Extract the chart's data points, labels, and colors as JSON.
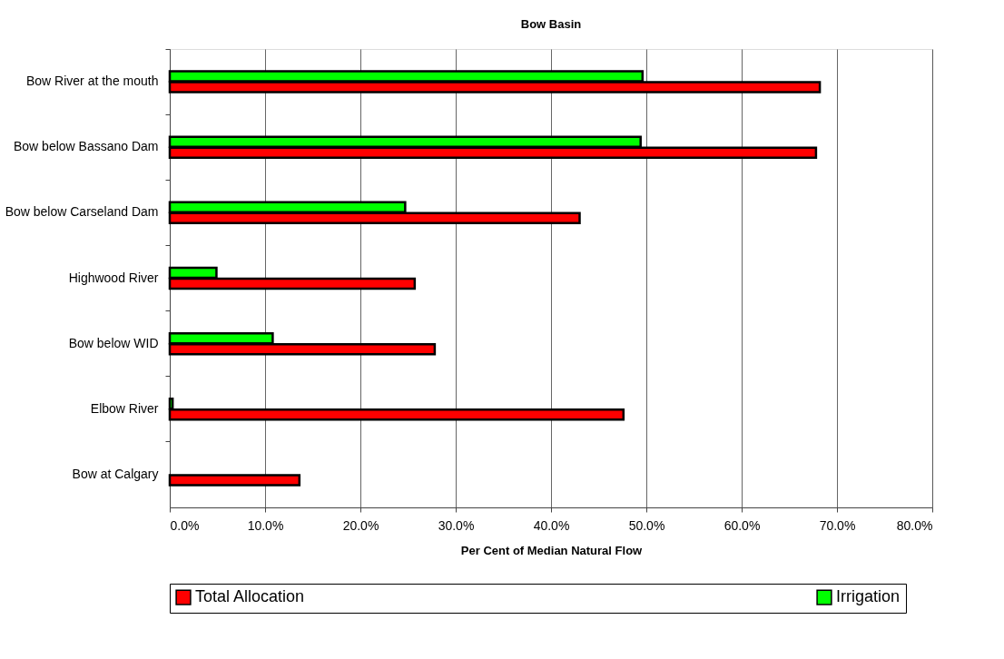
{
  "chart_data": {
    "type": "bar",
    "orientation": "horizontal",
    "title": "Bow Basin",
    "xlabel": "Per Cent of Median Natural Flow",
    "categories": [
      "Bow River at the mouth",
      "Bow below Bassano Dam",
      "Bow below Carseland Dam",
      "Highwood River",
      "Bow below WID",
      "Elbow River",
      "Bow at Calgary"
    ],
    "series": [
      {
        "name": "Irrigation",
        "color": "#00ff00",
        "values": [
          49.6,
          49.4,
          24.7,
          4.9,
          10.8,
          0.3,
          null
        ]
      },
      {
        "name": "Total Allocation",
        "color": "#ff0000",
        "values": [
          68.2,
          67.8,
          43.0,
          25.7,
          27.8,
          47.6,
          13.6
        ]
      }
    ],
    "xlim": [
      0,
      80
    ],
    "xticks": [
      {
        "value": 0,
        "label": "0.0%"
      },
      {
        "value": 10,
        "label": "10.0%"
      },
      {
        "value": 20,
        "label": "20.0%"
      },
      {
        "value": 30,
        "label": "30.0%"
      },
      {
        "value": 40,
        "label": "40.0%"
      },
      {
        "value": 50,
        "label": "50.0%"
      },
      {
        "value": 60,
        "label": "60.0%"
      },
      {
        "value": 70,
        "label": "70.0%"
      },
      {
        "value": 80,
        "label": "80.0%"
      }
    ],
    "grid": "x",
    "legend": "bottom"
  }
}
